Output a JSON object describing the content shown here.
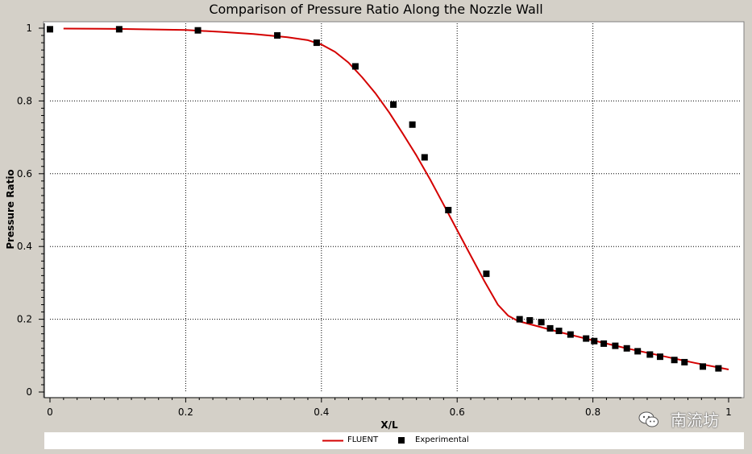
{
  "chart_data": {
    "type": "line",
    "title": "Comparison of Pressure Ratio Along the Nozzle Wall",
    "xlabel": "X/L",
    "ylabel": "Pressure Ratio",
    "xlim": [
      0,
      1
    ],
    "ylim": [
      0,
      1
    ],
    "xticks": [
      "0",
      "0.2",
      "0.4",
      "0.6",
      "0.8",
      "1"
    ],
    "yticks": [
      "0",
      "0.2",
      "0.4",
      "0.6",
      "0.8",
      "1"
    ],
    "grid": true,
    "legend_position": "bottom",
    "series": [
      {
        "name": "FLUENT",
        "kind": "line",
        "color": "#d40000",
        "x": [
          0.02,
          0.1,
          0.2,
          0.25,
          0.3,
          0.35,
          0.38,
          0.4,
          0.42,
          0.44,
          0.46,
          0.48,
          0.5,
          0.52,
          0.54,
          0.56,
          0.58,
          0.6,
          0.62,
          0.64,
          0.66,
          0.675,
          0.69,
          0.72,
          0.75,
          0.8,
          0.85,
          0.9,
          0.95,
          1.0
        ],
        "y": [
          0.999,
          0.998,
          0.995,
          0.99,
          0.984,
          0.975,
          0.967,
          0.955,
          0.935,
          0.905,
          0.865,
          0.82,
          0.768,
          0.71,
          0.65,
          0.585,
          0.515,
          0.445,
          0.375,
          0.305,
          0.24,
          0.21,
          0.195,
          0.18,
          0.165,
          0.142,
          0.12,
          0.1,
          0.08,
          0.062
        ]
      },
      {
        "name": "Experimental",
        "kind": "scatter",
        "color": "#000000",
        "x": [
          0.0,
          0.102,
          0.218,
          0.335,
          0.393,
          0.45,
          0.506,
          0.534,
          0.552,
          0.587,
          0.643,
          0.692,
          0.707,
          0.724,
          0.737,
          0.75,
          0.767,
          0.79,
          0.802,
          0.816,
          0.833,
          0.85,
          0.866,
          0.884,
          0.899,
          0.92,
          0.935,
          0.962,
          0.985
        ],
        "y": [
          0.997,
          0.997,
          0.994,
          0.98,
          0.96,
          0.895,
          0.79,
          0.735,
          0.645,
          0.5,
          0.325,
          0.2,
          0.197,
          0.192,
          0.175,
          0.168,
          0.158,
          0.147,
          0.14,
          0.133,
          0.127,
          0.12,
          0.112,
          0.103,
          0.097,
          0.088,
          0.082,
          0.07,
          0.065
        ]
      }
    ]
  },
  "legend": {
    "fluent_label": "FLUENT",
    "experimental_label": "Experimental"
  },
  "watermark": {
    "text": "南流坊"
  },
  "colors": {
    "background": "#d4d0c8",
    "plot_background": "#ffffff",
    "fluent_line": "#d40000",
    "marker": "#000000"
  }
}
